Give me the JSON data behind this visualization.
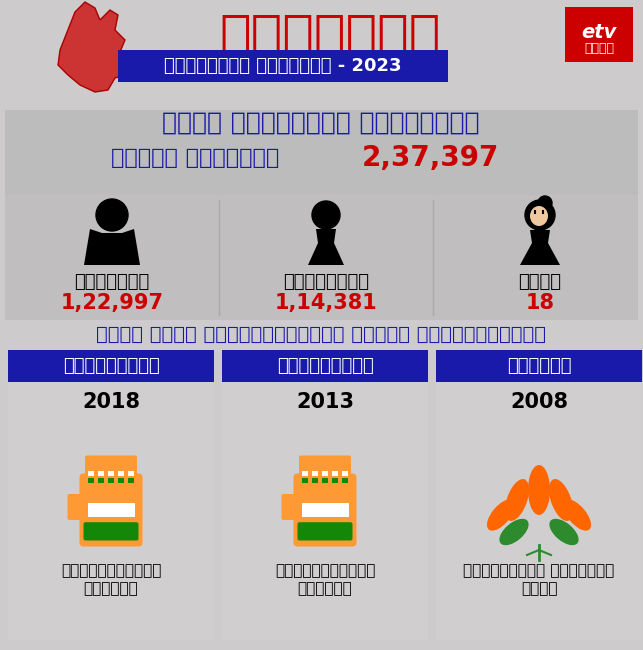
{
  "bg_color": "#cdcbcb",
  "dark_blue": "#1a1aaa",
  "red_color": "#cc0000",
  "white": "#ffffff",
  "black": "#000000",
  "light_gray": "#c5c3c3",
  "card_bg": "#d8d6d6",
  "title_kannada": "ಕರ್ನಾಟಕ",
  "subtitle_kannada": "ವಿಧಾನಸಭೆ ಚುನಾವಣೆ - 2023",
  "constituency_title": "ಇಂಡಿ ವಿಧಾನಸಭಾ ಕ್ಷೇತಭ್ರ",
  "total_voters_label": "ಒಟ್ಟು ಮತದಾರರು",
  "total_voters_value": "2,37,397",
  "male_label": "ಪುರುಷರು",
  "male_value": "1,22,997",
  "female_label": "ಮಹಿಳೆಯರು",
  "female_value": "1,14,381",
  "other_label": "ಇತರೆ",
  "other_value": "18",
  "past_winners_title": "ಕಳೆದ ಮೂರು ಚುನಾವಣೆಯಲ್ಲಿ ಗೆದ್ದ ಅಭ್ಯರ್ಥಿಗಳು",
  "party1_name": "ಕಾಂಗ್ರೆಸ್",
  "party1_year": "2018",
  "party1_winner_line1": "ಯಶವಂತರಾಯಗೌಡ",
  "party1_winner_line2": "ಪಾಟೀಲ್",
  "party2_name": "ಕಾಂಗ್ರೆಸ್",
  "party2_year": "2013",
  "party2_winner_line1": "ಯಶವಂತರಾಯಗೌಡ",
  "party2_winner_line2": "ಪಾಟೀಲ್",
  "party3_name": "ಬಿಜೆಪಿ",
  "party3_year": "2008",
  "party3_winner_line1": "ಸಾರ್ವಭೌಮು ಶಾಂತಗೌಡ",
  "party3_winner_line2": "ಬಗಲಿ"
}
